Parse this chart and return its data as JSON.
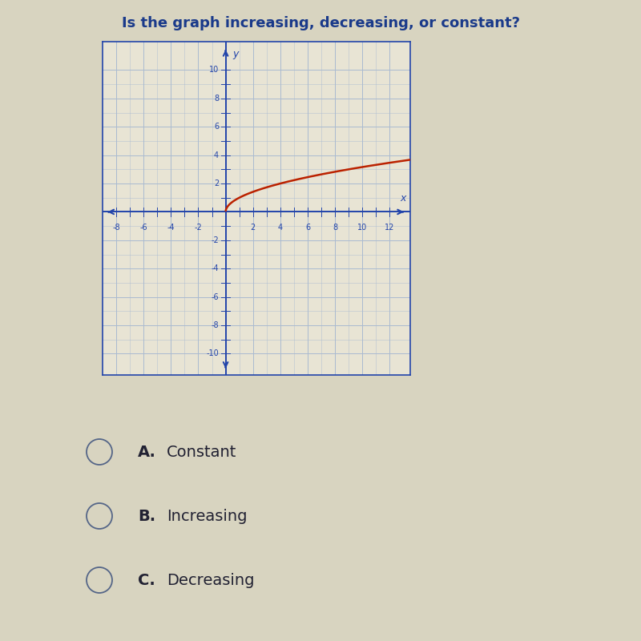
{
  "title": "Is the graph increasing, decreasing, or constant?",
  "title_fontsize": 13,
  "title_color": "#1a3a8a",
  "xlim": [
    -9,
    13.5
  ],
  "ylim": [
    -11.5,
    12
  ],
  "xticks": [
    -8,
    -6,
    -4,
    -2,
    2,
    4,
    6,
    8,
    10,
    12
  ],
  "yticks": [
    -10,
    -8,
    -6,
    -4,
    -2,
    2,
    4,
    6,
    8,
    10
  ],
  "minor_xticks": [
    -8,
    -7,
    -6,
    -5,
    -4,
    -3,
    -2,
    -1,
    0,
    1,
    2,
    3,
    4,
    5,
    6,
    7,
    8,
    9,
    10,
    11,
    12
  ],
  "minor_yticks": [
    -10,
    -9,
    -8,
    -7,
    -6,
    -5,
    -4,
    -3,
    -2,
    -1,
    0,
    1,
    2,
    3,
    4,
    5,
    6,
    7,
    8,
    9,
    10
  ],
  "curve_color": "#bb2200",
  "curve_linewidth": 1.8,
  "grid_color": "#aabbd0",
  "axis_color": "#2244aa",
  "bg_color": "#d8d4c0",
  "plot_bg_color": "#e8e4d4",
  "box_edge_color": "#2244aa",
  "choices": [
    "A.",
    "B.",
    "C."
  ],
  "choice_labels": [
    "Constant",
    "Increasing",
    "Decreasing"
  ],
  "choice_fontsize": 14,
  "choice_color": "#222233",
  "circle_color": "#556688"
}
